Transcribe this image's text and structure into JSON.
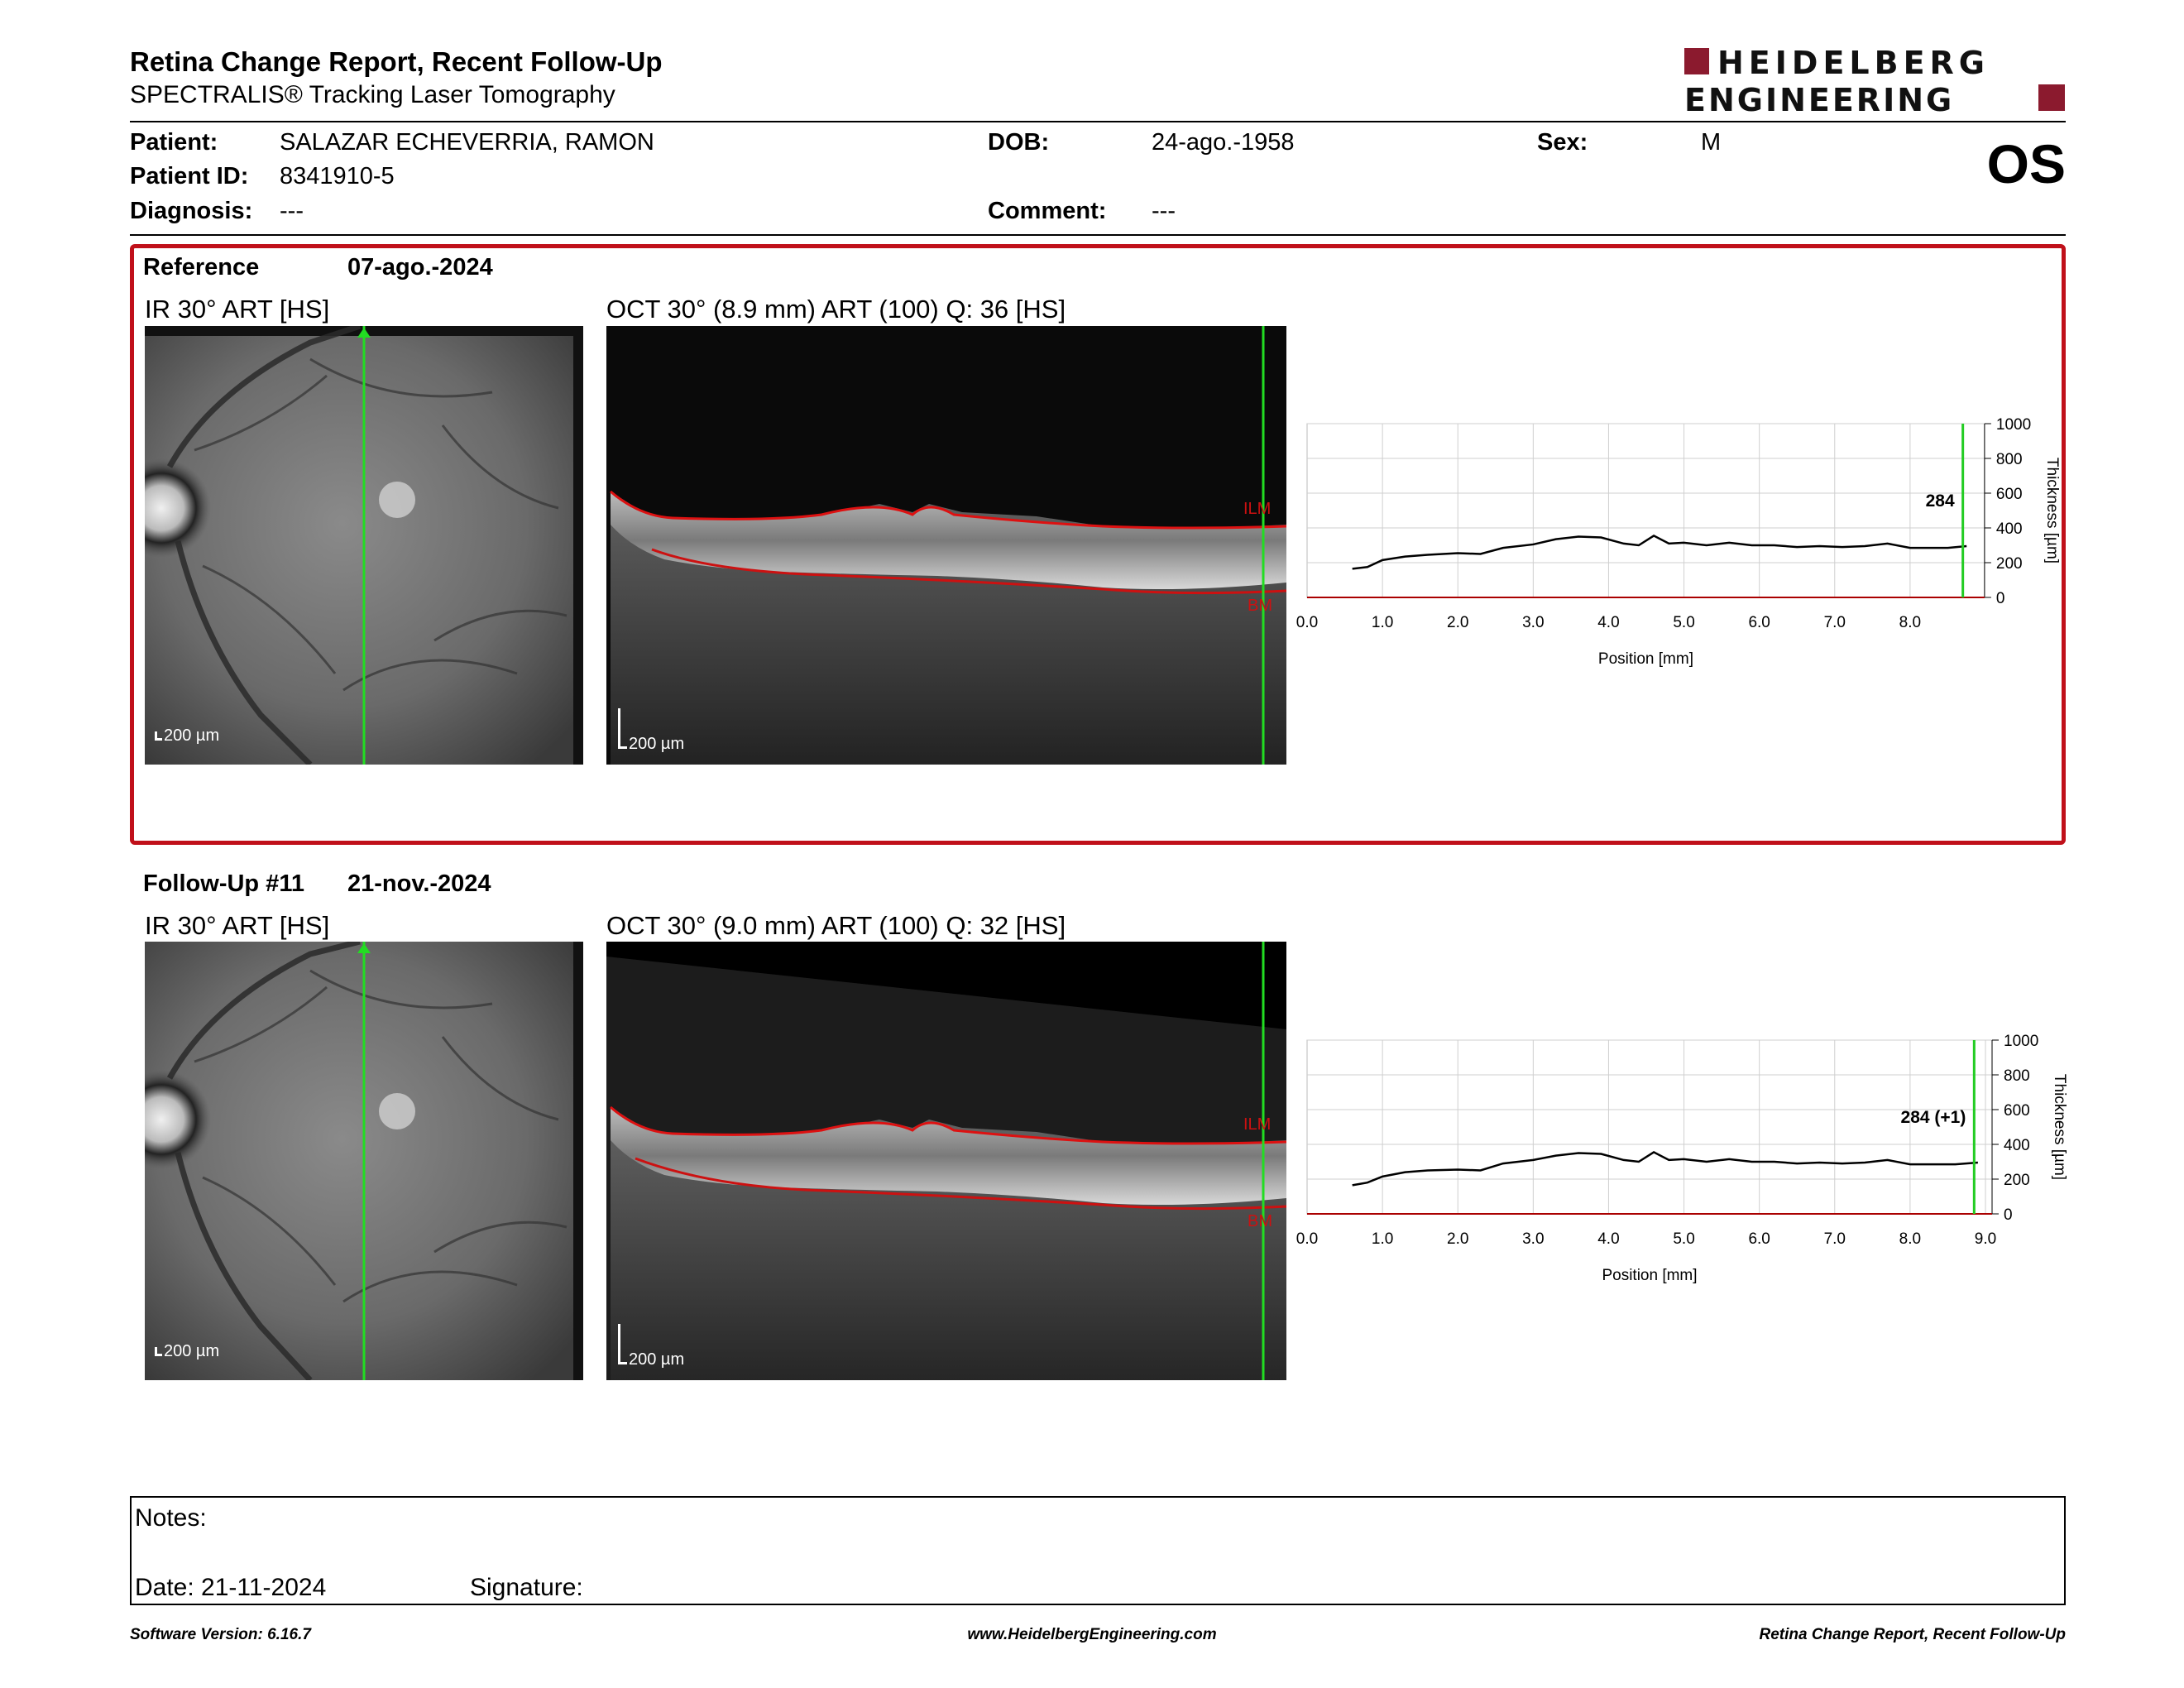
{
  "header": {
    "title": "Retina Change Report, Recent Follow-Up",
    "subtitle": "SPECTRALIS® Tracking Laser Tomography",
    "logo_line1": "HEIDELBERG",
    "logo_line2": "ENGINEERING",
    "eye": "OS"
  },
  "patient": {
    "patient_label": "Patient:",
    "patient_value": "SALAZAR ECHEVERRIA, RAMON",
    "id_label": "Patient ID:",
    "id_value": "8341910-5",
    "diagnosis_label": "Diagnosis:",
    "diagnosis_value": "---",
    "dob_label": "DOB:",
    "dob_value": "24-ago.-1958",
    "comment_label": "Comment:",
    "comment_value": "---",
    "sex_label": "Sex:",
    "sex_value": "M"
  },
  "reference": {
    "heading": "Reference",
    "date": "07-ago.-2024",
    "ir_label": "IR 30° ART [HS]",
    "oct_label": "OCT 30° (8.9 mm) ART (100) Q: 36 [HS]",
    "scale_ir": "200 µm",
    "scale_oct": "200 µm",
    "ilm": "ILM",
    "bm": "BM"
  },
  "followup": {
    "heading": "Follow-Up #11",
    "date": "21-nov.-2024",
    "ir_label": "IR 30° ART [HS]",
    "oct_label": "OCT 30° (9.0 mm) ART (100) Q: 32 [HS]",
    "scale_ir": "200 µm",
    "scale_oct": "200 µm",
    "ilm": "ILM",
    "bm": "BM"
  },
  "chart_data": [
    {
      "type": "line",
      "xlabel": "Position [mm]",
      "ylabel": "Thickness [µm]",
      "xlim": [
        0,
        8.9
      ],
      "ylim": [
        0,
        1000
      ],
      "xticks": [
        "0.0",
        "1.0",
        "2.0",
        "3.0",
        "4.0",
        "5.0",
        "6.0",
        "7.0",
        "8.0"
      ],
      "yticks": [
        "0",
        "200",
        "400",
        "600",
        "800",
        "1000"
      ],
      "marker_x": 8.7,
      "marker_label": "284",
      "line_color": "#000000",
      "marker_color": "#22cc22",
      "baseline_color": "#aa0000",
      "series": [
        {
          "x": [
            0.6,
            0.8,
            1.0,
            1.3,
            1.6,
            2.0,
            2.3,
            2.6,
            3.0,
            3.3,
            3.6,
            3.9,
            4.2,
            4.4,
            4.6,
            4.8,
            5.0,
            5.3,
            5.6,
            5.9,
            6.2,
            6.5,
            6.8,
            7.1,
            7.4,
            7.7,
            8.0,
            8.3,
            8.5,
            8.75
          ],
          "y": [
            165,
            175,
            215,
            235,
            245,
            255,
            250,
            285,
            305,
            335,
            350,
            345,
            310,
            300,
            355,
            310,
            315,
            300,
            315,
            300,
            300,
            290,
            295,
            290,
            295,
            310,
            285,
            285,
            285,
            295
          ]
        }
      ]
    },
    {
      "type": "line",
      "xlabel": "Position [mm]",
      "ylabel": "Thickness [µm]",
      "xlim": [
        0,
        9.0
      ],
      "ylim": [
        0,
        1000
      ],
      "xticks": [
        "0.0",
        "1.0",
        "2.0",
        "3.0",
        "4.0",
        "5.0",
        "6.0",
        "7.0",
        "8.0",
        "9.0"
      ],
      "yticks": [
        "0",
        "200",
        "400",
        "600",
        "800",
        "1000"
      ],
      "marker_x": 8.85,
      "marker_label": "284 (+1)",
      "line_color": "#000000",
      "marker_color": "#22cc22",
      "baseline_color": "#aa0000",
      "series": [
        {
          "x": [
            0.6,
            0.8,
            1.0,
            1.3,
            1.6,
            2.0,
            2.3,
            2.6,
            3.0,
            3.3,
            3.6,
            3.9,
            4.2,
            4.4,
            4.6,
            4.8,
            5.0,
            5.3,
            5.6,
            5.9,
            6.2,
            6.5,
            6.8,
            7.1,
            7.4,
            7.7,
            8.0,
            8.3,
            8.6,
            8.9
          ],
          "y": [
            165,
            180,
            215,
            240,
            250,
            255,
            250,
            290,
            310,
            335,
            350,
            345,
            310,
            300,
            355,
            310,
            315,
            300,
            315,
            300,
            300,
            290,
            295,
            290,
            295,
            310,
            285,
            285,
            285,
            295
          ]
        }
      ]
    }
  ],
  "notes": {
    "notes_label": "Notes:",
    "date_label": "Date: 21-11-2024",
    "signature_label": "Signature:"
  },
  "footer": {
    "software": "Software Version: 6.16.7",
    "website": "www.HeidelbergEngineering.com",
    "report": "Retina Change Report, Recent Follow-Up"
  }
}
